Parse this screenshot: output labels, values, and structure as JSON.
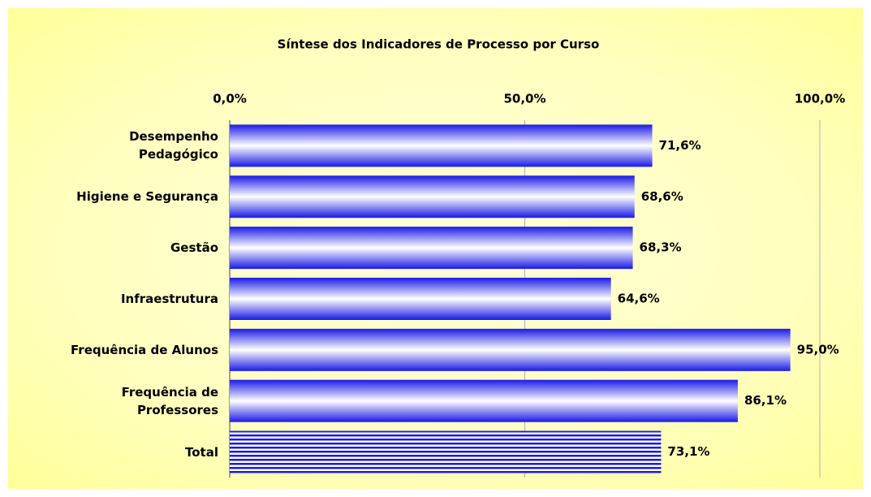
{
  "chart_data": {
    "type": "bar",
    "orientation": "horizontal",
    "title": "Síntese dos Indicadores de Processo por Curso",
    "categories": [
      "Desempenho\nPedagógico",
      "Higiene e Segurança",
      "Gestão",
      "Infraestrutura",
      "Frequência de Alunos",
      "Frequência de\nProfessores",
      "Total"
    ],
    "values": [
      71.6,
      68.6,
      68.3,
      64.6,
      95.0,
      86.1,
      73.1
    ],
    "value_labels": [
      "71,6%",
      "68,6%",
      "68,3%",
      "64,6%",
      "95,0%",
      "86,1%",
      "73,1%"
    ],
    "color": "#1a1ae6",
    "xlim": [
      0,
      100
    ],
    "xticks": [
      {
        "value": 0,
        "label": "0,0%"
      },
      {
        "value": 50,
        "label": "50,0%"
      },
      {
        "value": 100,
        "label": "100,0%"
      }
    ],
    "grid": true
  }
}
